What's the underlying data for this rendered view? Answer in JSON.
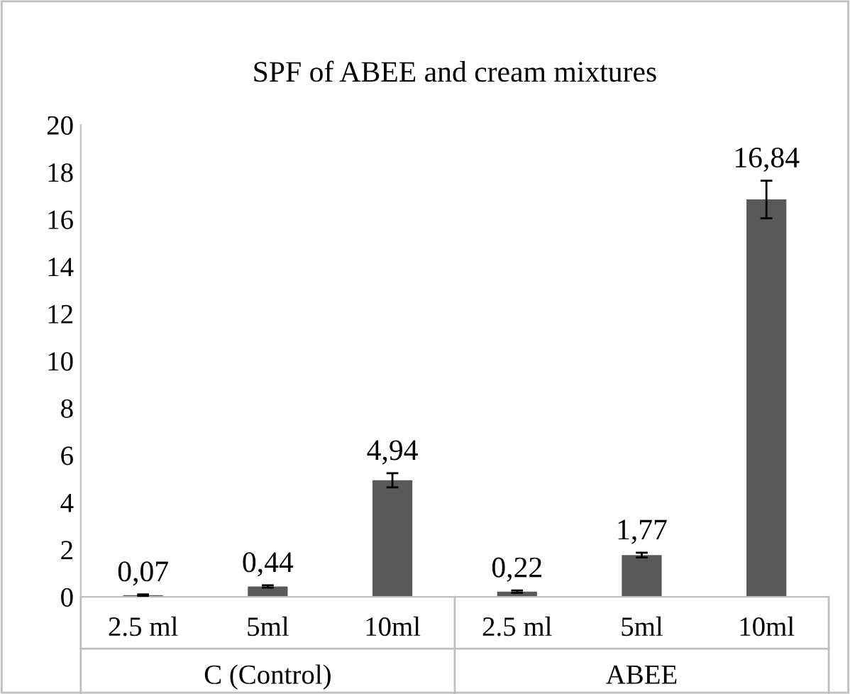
{
  "chart_data": {
    "type": "bar",
    "title": "SPF of ABEE and cream mixtures",
    "categories": [
      "2.5 ml",
      "5ml",
      "10ml",
      "2.5 ml",
      "5ml",
      "10ml"
    ],
    "values": [
      0.07,
      0.44,
      4.94,
      0.22,
      1.77,
      16.84
    ],
    "errors": [
      0.03,
      0.05,
      0.3,
      0.05,
      0.1,
      0.8
    ],
    "color": "#595959",
    "ylim": [
      0,
      20
    ],
    "yticks": [
      0,
      2,
      4,
      6,
      8,
      10,
      12,
      14,
      16,
      18,
      20
    ],
    "value_labels": [
      "0,07",
      "0,44",
      "4,94",
      "0,22",
      "1,77",
      "16,84"
    ],
    "grid": false,
    "legend": false,
    "annotations": [
      "C (Control)",
      "ABEE"
    ]
  }
}
